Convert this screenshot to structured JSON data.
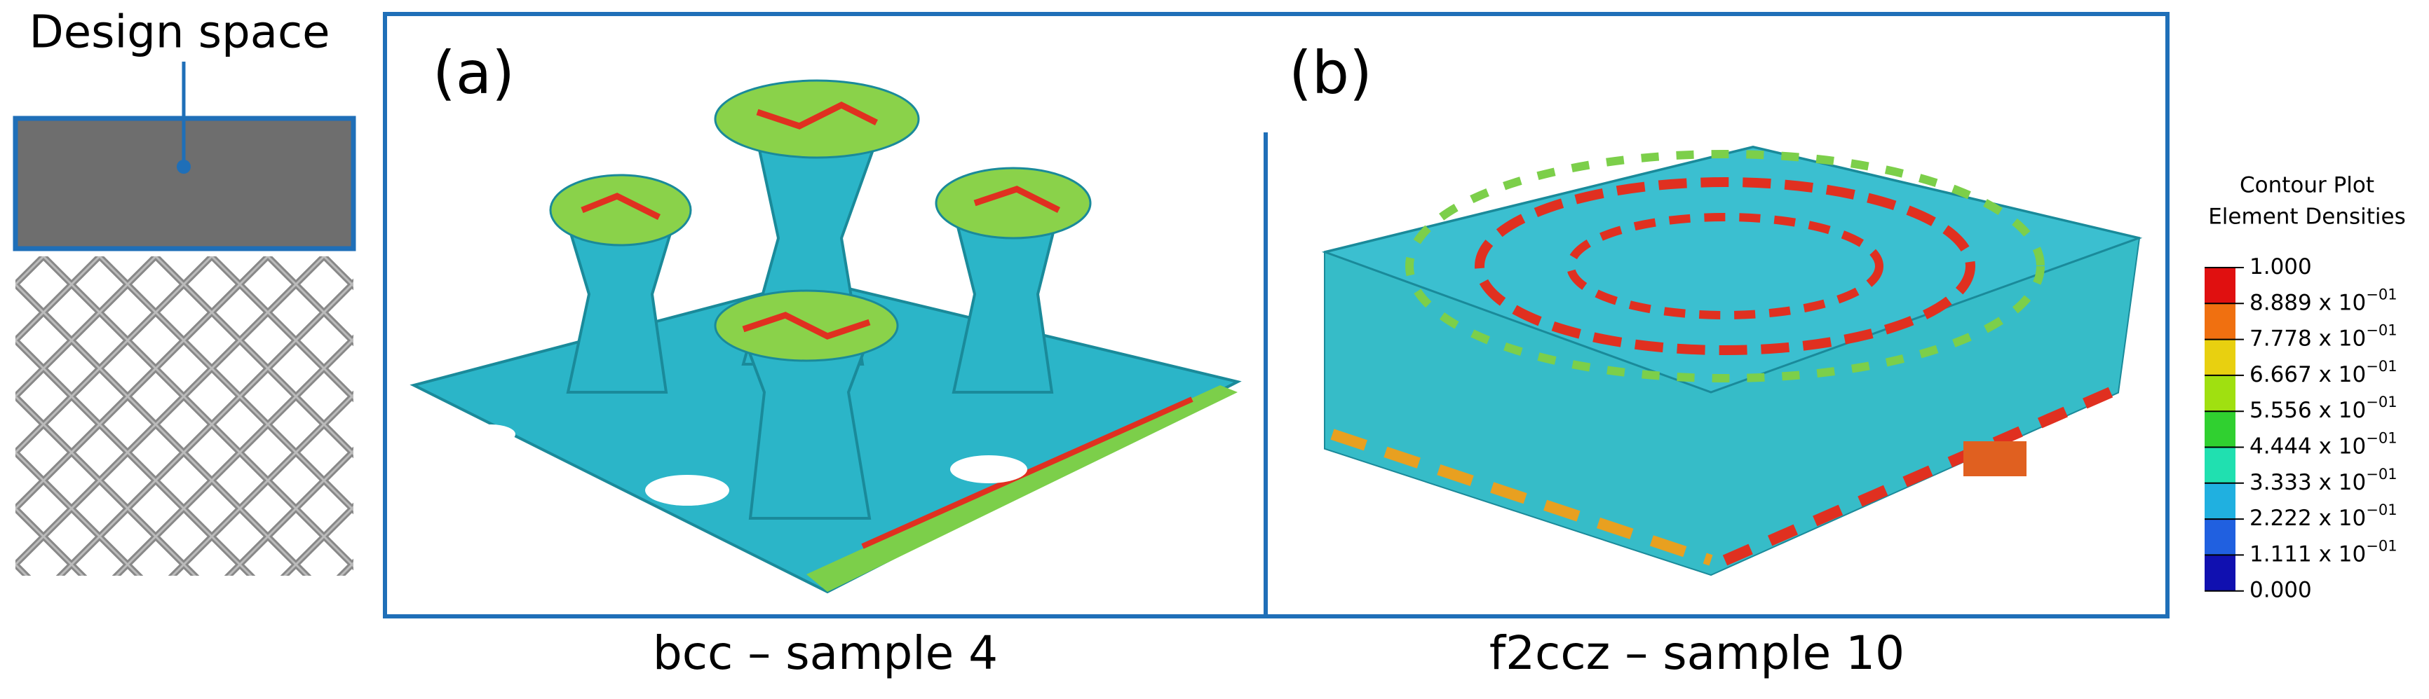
{
  "left": {
    "label": "Design space"
  },
  "panels": [
    {
      "tag": "(a)",
      "caption": "bcc – sample 4"
    },
    {
      "tag": "(b)",
      "caption": "f2ccz – sample 10"
    }
  ],
  "legend": {
    "title": [
      "Contour Plot",
      "Element Densities"
    ],
    "ticks": [
      {
        "text": "1.000",
        "sup": ""
      },
      {
        "text": "8.889 x 10",
        "sup": "−01"
      },
      {
        "text": "7.778 x 10",
        "sup": "−01"
      },
      {
        "text": "6.667 x 10",
        "sup": "−01"
      },
      {
        "text": "5.556 x 10",
        "sup": "−01"
      },
      {
        "text": "4.444 x 10",
        "sup": "−01"
      },
      {
        "text": "3.333 x 10",
        "sup": "−01"
      },
      {
        "text": "2.222 x 10",
        "sup": "−01"
      },
      {
        "text": "1.111 x 10",
        "sup": "−01"
      },
      {
        "text": "0.000",
        "sup": ""
      }
    ]
  }
}
